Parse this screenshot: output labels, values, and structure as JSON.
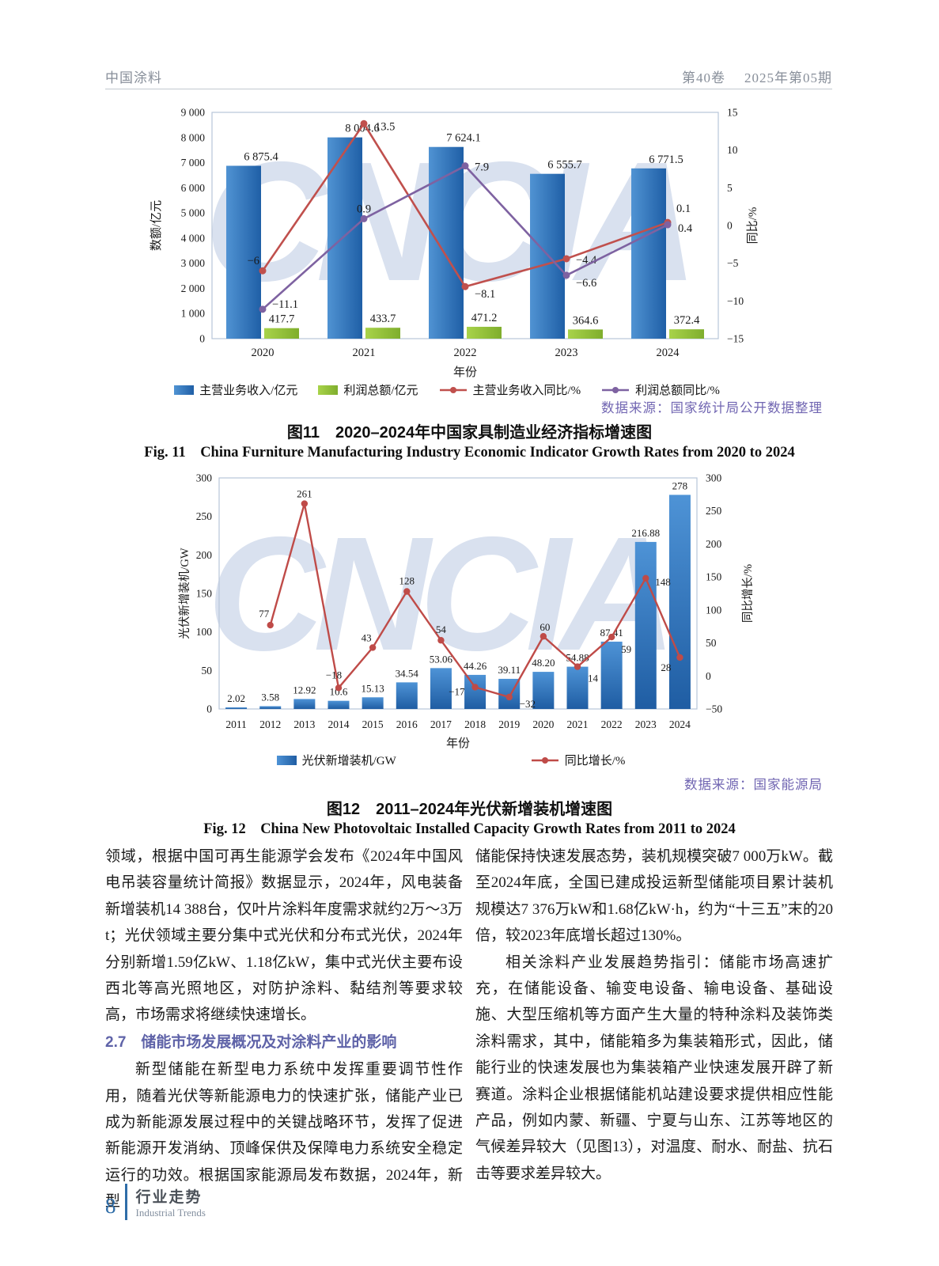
{
  "page": {
    "header": {
      "journal": "中国涂料",
      "volume": "第40卷",
      "issue": "2025年第05期"
    },
    "watermark_text": "CNCIA",
    "footer": {
      "page_number": "8",
      "section_cn": "行业走势",
      "section_en": "Industrial Trends"
    }
  },
  "chart_data": [
    {
      "id": "fig11",
      "type": "bar+line",
      "title_cn": "图11　2020–2024年中国家具制造业经济指标增速图",
      "title_en": "Fig. 11　China Furniture Manufacturing Industry Economic Indicator Growth Rates from 2020 to 2024",
      "source": "数据来源：国家统计局公开数据整理",
      "xlabel": "年份",
      "categories": [
        "2020",
        "2021",
        "2022",
        "2023",
        "2024"
      ],
      "left_axis": {
        "title": "数额/亿元",
        "min": 0,
        "max": 9000,
        "step": 1000,
        "tick_labels": [
          "0",
          "1 000",
          "2 000",
          "3 000",
          "4 000",
          "5 000",
          "6 000",
          "7 000",
          "8 000",
          "9 000"
        ]
      },
      "right_axis": {
        "title": "同比/%",
        "min": -15,
        "max": 15,
        "step": 5,
        "tick_labels": [
          "−15",
          "−10",
          "−5",
          "0",
          "5",
          "10",
          "15"
        ]
      },
      "bar_series": [
        {
          "name": "主营业务收入/亿元",
          "color": "#1f5fa6",
          "color_light": "#5093d3",
          "values": [
            6875.4,
            8004.6,
            7624.1,
            6555.7,
            6771.5
          ],
          "labels": [
            "6 875.4",
            "8 004.6",
            "7 624.1",
            "6 555.7",
            "6 771.5"
          ]
        },
        {
          "name": "利润总额/亿元",
          "color": "#7fae2d",
          "color_light": "#a8d34a",
          "values": [
            417.7,
            433.7,
            471.2,
            364.6,
            372.4
          ],
          "labels": [
            "417.7",
            "433.7",
            "471.2",
            "364.6",
            "372.4"
          ]
        }
      ],
      "line_series": [
        {
          "name": "主营业务收入同比/%",
          "color": "#c0504d",
          "values": [
            -6,
            13.5,
            -8.1,
            -4.4,
            0.4
          ],
          "labels": [
            "−6",
            "13.5",
            "−8.1",
            "−4.4",
            "0.4"
          ],
          "label_pos": [
            [
              -4,
              -12,
              "e"
            ],
            [
              14,
              4,
              "s"
            ],
            [
              12,
              10,
              "s"
            ],
            [
              12,
              2,
              "s"
            ],
            [
              13,
              8,
              "s"
            ]
          ]
        },
        {
          "name": "利润总额同比/%",
          "color": "#7e62a1",
          "values": [
            -11.1,
            0.9,
            7.9,
            -6.6,
            0.1
          ],
          "labels": [
            "−11.1",
            "0.9",
            "7.9",
            "−6.6",
            "0.1"
          ],
          "label_pos": [
            [
              12,
              -6,
              "s"
            ],
            [
              0,
              -12,
              "m"
            ],
            [
              12,
              2,
              "s"
            ],
            [
              12,
              10,
              "s"
            ],
            [
              11,
              -20,
              "s"
            ]
          ]
        }
      ],
      "legend_position": "bottom",
      "grid": false
    },
    {
      "id": "fig12",
      "type": "bar+line",
      "title_cn": "图12　2011–2024年光伏新增装机增速图",
      "title_en": "Fig. 12　China New Photovoltaic Installed Capacity Growth Rates from 2011 to 2024",
      "source": "数据来源：国家能源局",
      "xlabel": "年份",
      "categories": [
        "2011",
        "2012",
        "2013",
        "2014",
        "2015",
        "2016",
        "2017",
        "2018",
        "2019",
        "2020",
        "2021",
        "2022",
        "2023",
        "2024"
      ],
      "left_axis": {
        "title": "光伏新增装机/GW",
        "min": 0,
        "max": 300,
        "step": 50,
        "tick_labels": [
          "0",
          "50",
          "100",
          "150",
          "200",
          "250",
          "300"
        ]
      },
      "right_axis": {
        "title": "同比增长/%",
        "min": -50,
        "max": 300,
        "step": 50,
        "tick_labels": [
          "−50",
          "0",
          "50",
          "100",
          "150",
          "200",
          "250",
          "300"
        ]
      },
      "bar_series": [
        {
          "name": "光伏新增装机/GW",
          "color": "#1f5da3",
          "color_light": "#4e93d6",
          "values": [
            2.02,
            3.58,
            12.92,
            10.6,
            15.13,
            34.54,
            53.06,
            44.26,
            39.11,
            48.2,
            54.88,
            87.41,
            216.88,
            278
          ],
          "labels": [
            "2.02",
            "3.58",
            "12.92",
            "10.6",
            "15.13",
            "34.54",
            "53.06",
            "44.26",
            "39.11",
            "48.20",
            "54.88",
            "87.41",
            "216.88",
            "278"
          ]
        }
      ],
      "line_series": [
        {
          "name": "同比增长/%",
          "color": "#bf4b48",
          "values": [
            null,
            77,
            261,
            -18,
            43,
            128,
            54,
            -17,
            -32,
            60,
            14,
            59,
            148,
            28
          ],
          "labels": [
            null,
            "77",
            "261",
            "−18",
            "43",
            "128",
            "54",
            "−17",
            "−32",
            "60",
            "14",
            "59",
            "148",
            "28"
          ],
          "label_pos": [
            null,
            [
              -8,
              -14,
              "m"
            ],
            [
              0,
              -12,
              "m"
            ],
            [
              -6,
              -16,
              "m"
            ],
            [
              -8,
              -12,
              "m"
            ],
            [
              0,
              -13,
              "m"
            ],
            [
              0,
              -13,
              "m"
            ],
            [
              -13,
              6,
              "e"
            ],
            [
              13,
              9,
              "s"
            ],
            [
              2,
              -11,
              "m"
            ],
            [
              13,
              15,
              "s"
            ],
            [
              12,
              16,
              "s"
            ],
            [
              12,
              5,
              "s"
            ],
            [
              -11,
              13,
              "e"
            ]
          ]
        }
      ],
      "legend_position": "bottom",
      "grid": false
    }
  ],
  "article": {
    "left_column": {
      "p1": "领域，根据中国可再生能源学会发布《2024年中国风电吊装容量统计简报》数据显示，2024年，风电装备新增装机14 388台，仅叶片涂料年度需求就约2万～3万t；光伏领域主要分集中式光伏和分布式光伏，2024年分别新增1.59亿kW、1.18亿kW，集中式光伏主要布设西北等高光照地区，对防护涂料、黏结剂等要求较高，市场需求将继续快速增长。",
      "heading": "2.7　储能市场发展概况及对涂料产业的影响",
      "p2": "新型储能在新型电力系统中发挥重要调节性作用，随着光伏等新能源电力的快速扩张，储能产业已成为新能源发展过程中的关键战略环节，发挥了促进新能源开发消纳、顶峰保供及保障电力系统安全稳定运行的功效。根据国家能源局发布数据，2024年，新型"
    },
    "right_column": {
      "p1": "储能保持快速发展态势，装机规模突破7 000万kW。截至2024年底，全国已建成投运新型储能项目累计装机规模达7 376万kW和1.68亿kW·h，约为“十三五”末的20倍，较2023年底增长超过130%。",
      "p2": "相关涂料产业发展趋势指引：储能市场高速扩充，在储能设备、输变电设备、输电设备、基础设施、大型压缩机等方面产生大量的特种涂料及装饰类涂料需求，其中，储能箱多为集装箱形式，因此，储能行业的快速发展也为集装箱产业快速发展开辟了新赛道。涂料企业根据储能机站建设要求提供相应性能产品，例如内蒙、新疆、宁夏与山东、江苏等地区的气候差异较大（见图13），对温度、耐水、耐盐、抗石击等要求差异较大。"
    }
  },
  "colors": {
    "accent_heading": "#5f63a8",
    "source_text": "#7166b2",
    "footer_accent": "#2f6da8",
    "header_text": "#878e99",
    "watermark": "#d9e1ef"
  }
}
